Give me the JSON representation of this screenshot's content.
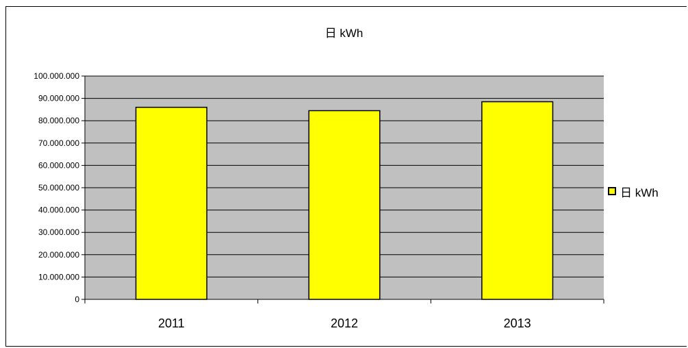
{
  "colors": {
    "plot_bg": "#c0c0c0",
    "bar_fill": "#ffff00",
    "bar_stroke": "#000000",
    "grid": "#000000"
  },
  "chart_data": {
    "type": "bar",
    "title": "日 kWh",
    "categories": [
      "2011",
      "2012",
      "2013"
    ],
    "series": [
      {
        "name": "日 kWh",
        "values": [
          86000000,
          84500000,
          88500000
        ]
      }
    ],
    "ylim": [
      0,
      100000000
    ],
    "yticks": [
      0,
      10000000,
      20000000,
      30000000,
      40000000,
      50000000,
      60000000,
      70000000,
      80000000,
      90000000,
      100000000
    ],
    "ytick_labels": [
      "0",
      "10.000.000",
      "20.000.000",
      "30.000.000",
      "40.000.000",
      "50.000.000",
      "60.000.000",
      "70.000.000",
      "80.000.000",
      "90.000.000",
      "100.000.000"
    ],
    "grid": true,
    "legend": "right"
  }
}
